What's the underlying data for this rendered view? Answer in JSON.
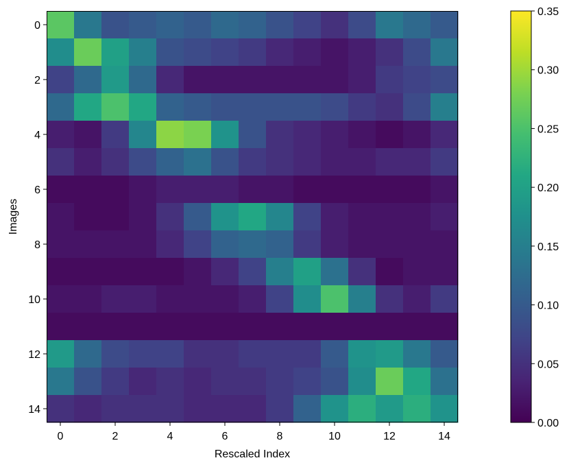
{
  "chart_data": {
    "type": "heatmap",
    "xlabel": "Rescaled Index",
    "ylabel": "Images",
    "x_ticks": [
      "0",
      "2",
      "4",
      "6",
      "8",
      "10",
      "12",
      "14"
    ],
    "y_ticks": [
      "0",
      "2",
      "4",
      "6",
      "8",
      "10",
      "12",
      "14"
    ],
    "x_tick_values": [
      0,
      2,
      4,
      6,
      8,
      10,
      12,
      14
    ],
    "y_tick_values": [
      0,
      2,
      4,
      6,
      8,
      10,
      12,
      14
    ],
    "colorbar": {
      "colormap": "viridis",
      "range": [
        0,
        0.35
      ],
      "ticks": [
        "0.00",
        "0.05",
        "0.10",
        "0.15",
        "0.20",
        "0.25",
        "0.30",
        "0.35"
      ],
      "tick_values": [
        0,
        0.05,
        0.1,
        0.15,
        0.2,
        0.25,
        0.3,
        0.35
      ]
    },
    "values": [
      [
        0.26,
        0.14,
        0.09,
        0.1,
        0.11,
        0.1,
        0.12,
        0.11,
        0.09,
        0.07,
        0.05,
        0.08,
        0.14,
        0.12,
        0.1
      ],
      [
        0.17,
        0.27,
        0.2,
        0.15,
        0.09,
        0.08,
        0.07,
        0.06,
        0.04,
        0.03,
        0.02,
        0.03,
        0.05,
        0.08,
        0.14
      ],
      [
        0.07,
        0.12,
        0.19,
        0.12,
        0.04,
        0.02,
        0.02,
        0.02,
        0.02,
        0.02,
        0.02,
        0.03,
        0.06,
        0.07,
        0.08
      ],
      [
        0.12,
        0.21,
        0.25,
        0.21,
        0.11,
        0.1,
        0.09,
        0.09,
        0.09,
        0.09,
        0.08,
        0.06,
        0.05,
        0.08,
        0.15
      ],
      [
        0.03,
        0.02,
        0.06,
        0.16,
        0.29,
        0.28,
        0.18,
        0.09,
        0.05,
        0.04,
        0.03,
        0.02,
        0.01,
        0.02,
        0.04
      ],
      [
        0.05,
        0.03,
        0.05,
        0.08,
        0.11,
        0.13,
        0.09,
        0.06,
        0.05,
        0.04,
        0.03,
        0.03,
        0.04,
        0.04,
        0.06
      ],
      [
        0.01,
        0.01,
        0.01,
        0.02,
        0.03,
        0.03,
        0.03,
        0.02,
        0.02,
        0.01,
        0.01,
        0.01,
        0.01,
        0.01,
        0.02
      ],
      [
        0.02,
        0.01,
        0.01,
        0.02,
        0.05,
        0.1,
        0.18,
        0.21,
        0.16,
        0.07,
        0.03,
        0.02,
        0.02,
        0.02,
        0.03
      ],
      [
        0.02,
        0.02,
        0.02,
        0.02,
        0.04,
        0.07,
        0.11,
        0.12,
        0.11,
        0.06,
        0.03,
        0.02,
        0.02,
        0.02,
        0.02
      ],
      [
        0.01,
        0.01,
        0.01,
        0.01,
        0.01,
        0.02,
        0.04,
        0.07,
        0.15,
        0.2,
        0.13,
        0.05,
        0.01,
        0.02,
        0.02
      ],
      [
        0.02,
        0.02,
        0.03,
        0.03,
        0.02,
        0.02,
        0.02,
        0.03,
        0.07,
        0.17,
        0.25,
        0.15,
        0.05,
        0.03,
        0.06
      ],
      [
        0.01,
        0.01,
        0.01,
        0.01,
        0.01,
        0.01,
        0.01,
        0.01,
        0.01,
        0.01,
        0.01,
        0.01,
        0.01,
        0.01,
        0.01
      ],
      [
        0.19,
        0.12,
        0.08,
        0.07,
        0.07,
        0.05,
        0.05,
        0.06,
        0.06,
        0.06,
        0.1,
        0.18,
        0.19,
        0.14,
        0.1
      ],
      [
        0.14,
        0.09,
        0.06,
        0.04,
        0.05,
        0.04,
        0.05,
        0.05,
        0.06,
        0.07,
        0.09,
        0.17,
        0.27,
        0.21,
        0.13
      ],
      [
        0.05,
        0.04,
        0.05,
        0.05,
        0.05,
        0.04,
        0.04,
        0.04,
        0.06,
        0.11,
        0.18,
        0.22,
        0.19,
        0.22,
        0.18
      ]
    ]
  }
}
